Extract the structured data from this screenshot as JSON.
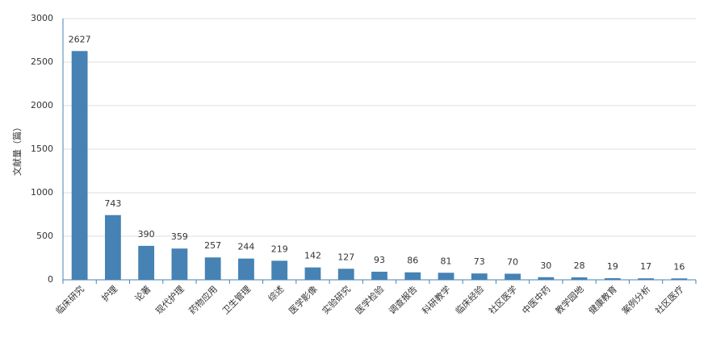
{
  "chart_data": {
    "type": "bar",
    "y_label": "文献量（篇）",
    "categories": [
      "临床研究",
      "护理",
      "论著",
      "现代护理",
      "药物应用",
      "卫生管理",
      "综述",
      "医学影像",
      "实验研究",
      "医学检验",
      "调查报告",
      "科研教学",
      "临床经验",
      "社区医学",
      "中医中药",
      "教学园地",
      "健康教育",
      "案例分析",
      "社区医疗"
    ],
    "values": [
      2627,
      743,
      390,
      359,
      257,
      244,
      219,
      142,
      127,
      93,
      86,
      81,
      73,
      70,
      30,
      28,
      19,
      17,
      16
    ],
    "color": "#4682b4",
    "ylim": [
      0,
      3000
    ],
    "yticks": [
      0,
      500,
      1000,
      1500,
      2000,
      2500,
      3000
    ],
    "grid": true
  }
}
